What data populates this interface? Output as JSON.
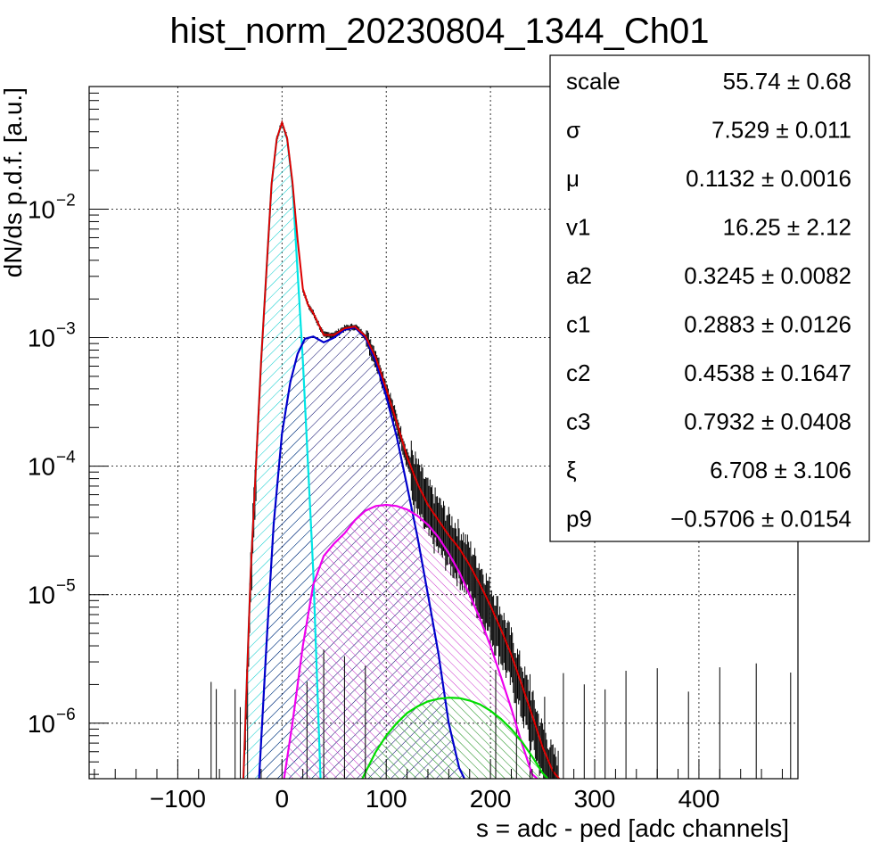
{
  "chart_data": {
    "type": "line",
    "title": "hist_norm_20230804_1344_Ch01",
    "xlabel": "s = adc - ped [adc channels]",
    "ylabel": "dN/ds p.d.f. [a.u.]",
    "xlim": [
      -185,
      495
    ],
    "ylim": [
      3.7e-07,
      0.09
    ],
    "yscale": "log",
    "grid": true,
    "x_ticks": [
      -100,
      0,
      100,
      200,
      300,
      400
    ],
    "x_tick_labels": [
      "−100",
      "0",
      "100",
      "200",
      "300",
      "400"
    ],
    "y_ticks": [
      {
        "value": 1e-06,
        "base": "10",
        "exp": "−6"
      },
      {
        "value": 1e-05,
        "base": "10",
        "exp": "−5"
      },
      {
        "value": 0.0001,
        "base": "10",
        "exp": "−4"
      },
      {
        "value": 0.001,
        "base": "10",
        "exp": "−3"
      },
      {
        "value": 0.01,
        "base": "10",
        "exp": "−2"
      }
    ],
    "series": [
      {
        "color": "#00e5e5",
        "fill": "hatch",
        "x": [
          -37,
          -30,
          -20,
          -10,
          -5,
          0,
          5,
          10,
          20,
          30,
          37
        ],
        "y": [
          3.7e-07,
          1.5e-05,
          0.00066,
          0.0155,
          0.035,
          0.047,
          0.035,
          0.0155,
          0.00066,
          1.5e-05,
          3.7e-07
        ]
      },
      {
        "color": "#0000cc",
        "fill": "hatch",
        "x": [
          -22,
          -15,
          -8,
          0,
          8,
          15,
          22,
          30,
          40,
          50,
          60,
          70,
          80,
          90,
          100,
          110,
          120,
          130,
          140,
          150,
          160,
          170,
          175
        ],
        "y": [
          3.7e-07,
          4e-06,
          3.5e-05,
          0.00018,
          0.00045,
          0.00075,
          0.00098,
          0.00102,
          0.00092,
          0.001,
          0.00115,
          0.0012,
          0.001,
          0.00065,
          0.00035,
          0.00017,
          7e-05,
          2.8e-05,
          1e-05,
          3.5e-06,
          1e-06,
          4.5e-07,
          3.7e-07
        ]
      },
      {
        "color": "#ee00ee",
        "fill": "hatch",
        "x": [
          2,
          10,
          20,
          30,
          40,
          50,
          60,
          70,
          80,
          90,
          100,
          110,
          120,
          130,
          140,
          150,
          160,
          170,
          180,
          190,
          200,
          210,
          220,
          230,
          240,
          245
        ],
        "y": [
          3.7e-07,
          1e-06,
          4e-06,
          1.2e-05,
          2e-05,
          2.5e-05,
          3e-05,
          3.8e-05,
          4.5e-05,
          4.9e-05,
          5e-05,
          4.9e-05,
          4.6e-05,
          4.1e-05,
          3.5e-05,
          2.8e-05,
          2.1e-05,
          1.5e-05,
          1e-05,
          6.5e-06,
          4e-06,
          2.3e-06,
          1.3e-06,
          7e-07,
          4e-07,
          3.7e-07
        ]
      },
      {
        "color": "#00dd00",
        "fill": "hatch",
        "x": [
          77,
          90,
          100,
          110,
          120,
          130,
          140,
          150,
          160,
          170,
          180,
          190,
          200,
          210,
          220,
          230,
          240,
          250,
          255
        ],
        "y": [
          3.7e-07,
          6e-07,
          8e-07,
          1e-06,
          1.2e-06,
          1.35e-06,
          1.48e-06,
          1.55e-06,
          1.58e-06,
          1.57e-06,
          1.5e-06,
          1.4e-06,
          1.25e-06,
          1.08e-06,
          9e-07,
          7.2e-07,
          5.5e-07,
          4.1e-07,
          3.7e-07
        ]
      },
      {
        "color": "#dd0000",
        "fill": "none",
        "x": [
          -37,
          -30,
          -20,
          -10,
          -5,
          0,
          5,
          10,
          15,
          20,
          25,
          30,
          40,
          50,
          60,
          70,
          80,
          90,
          100,
          110,
          120,
          130,
          140,
          150,
          160,
          170,
          180,
          190,
          200,
          210,
          220,
          230,
          240,
          250,
          260,
          266
        ],
        "y": [
          3.7e-07,
          1.5e-05,
          0.00066,
          0.0157,
          0.0352,
          0.0472,
          0.0355,
          0.0163,
          0.0058,
          0.0024,
          0.0018,
          0.00155,
          0.00105,
          0.00105,
          0.00118,
          0.00122,
          0.00103,
          0.0007,
          0.0004,
          0.00022,
          0.000118,
          7.3e-05,
          5e-05,
          3.8e-05,
          2.9e-05,
          2.3e-05,
          1.7e-05,
          1.2e-05,
          8.2e-06,
          5.4e-06,
          3.4e-06,
          2e-06,
          1.15e-06,
          6.5e-07,
          4.2e-07,
          3.7e-07
        ]
      }
    ]
  },
  "stats": {
    "rows": [
      {
        "name": "scale",
        "value": "55.74 ± 0.68"
      },
      {
        "name": "σ",
        "value": "7.529 ± 0.011"
      },
      {
        "name": "μ",
        "value": "0.1132 ± 0.0016"
      },
      {
        "name": "v1",
        "value": "16.25 ± 2.12"
      },
      {
        "name": "a2",
        "value": "0.3245 ± 0.0082"
      },
      {
        "name": "c1",
        "value": "0.2883 ± 0.0126"
      },
      {
        "name": "c2",
        "value": "0.4538 ± 0.1647"
      },
      {
        "name": "c3",
        "value": "0.7932 ± 0.0408"
      },
      {
        "name": "ξ",
        "value": "6.708 ± 3.106"
      },
      {
        "name": "p9",
        "value": "−0.5706 ± 0.0154"
      }
    ]
  }
}
